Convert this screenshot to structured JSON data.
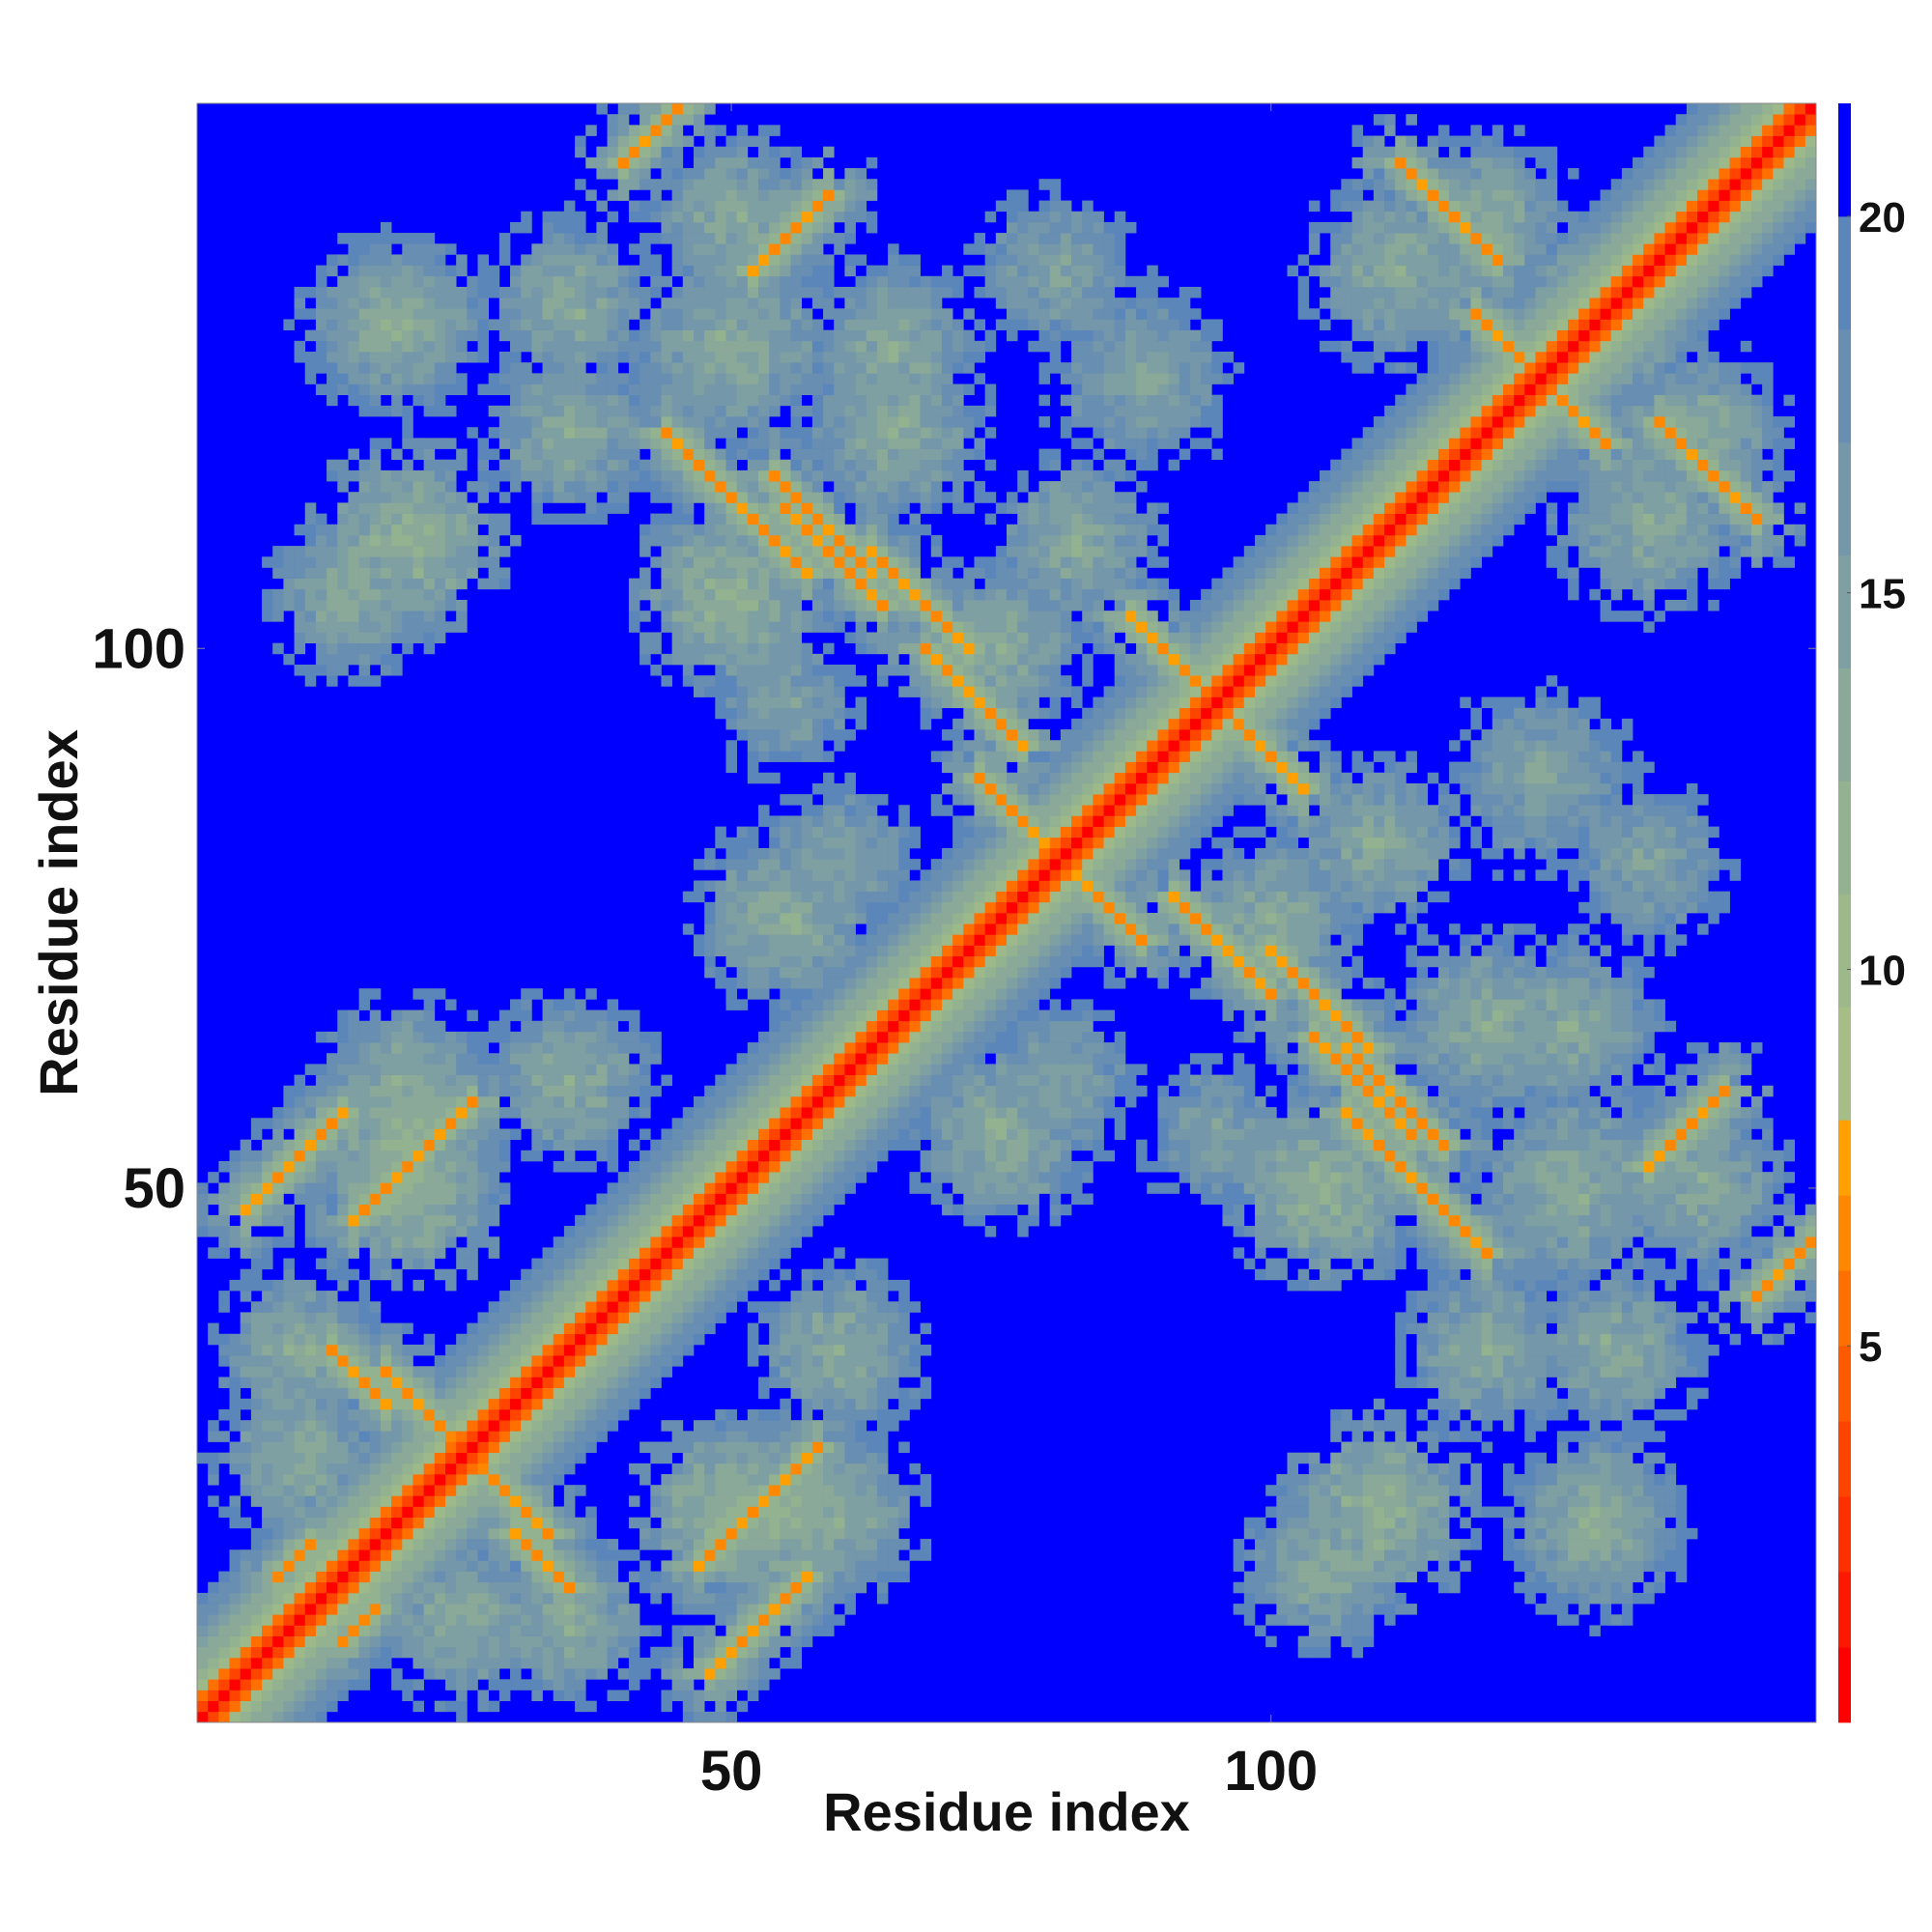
{
  "chart_data": {
    "type": "heatmap",
    "title": "",
    "xlabel": "Residue index",
    "ylabel": "Residue index",
    "n_residues": 150,
    "xlim": [
      1,
      150
    ],
    "ylim": [
      1,
      150
    ],
    "x_ticks": [
      50,
      100
    ],
    "y_ticks": [
      50,
      100
    ],
    "x_tick_labels": [
      "50",
      "100"
    ],
    "y_tick_labels": [
      "50",
      "100"
    ],
    "colorbar": {
      "range": [
        0,
        21.5
      ],
      "ticks": [
        5,
        10,
        15,
        20
      ],
      "tick_labels": [
        "5",
        "10",
        "15",
        "20"
      ],
      "levels": [
        {
          "upper": 1,
          "color": "#ff0000"
        },
        {
          "upper": 2,
          "color": "#ff1800"
        },
        {
          "upper": 3,
          "color": "#ff3000"
        },
        {
          "upper": 4,
          "color": "#ff4400"
        },
        {
          "upper": 5,
          "color": "#ff5a00"
        },
        {
          "upper": 6,
          "color": "#ff7000"
        },
        {
          "upper": 7,
          "color": "#ff8800"
        },
        {
          "upper": 8,
          "color": "#ffa000"
        },
        {
          "upper": 9.5,
          "color": "#a6bd85"
        },
        {
          "upper": 11,
          "color": "#9db98a"
        },
        {
          "upper": 12.5,
          "color": "#93b290"
        },
        {
          "upper": 14,
          "color": "#8aa998"
        },
        {
          "upper": 15.5,
          "color": "#7fa0a2"
        },
        {
          "upper": 17,
          "color": "#7497aa"
        },
        {
          "upper": 18.5,
          "color": "#688eb2"
        },
        {
          "upper": 20,
          "color": "#5b86ba"
        },
        {
          "upper": 21.5,
          "color": "#0000ff"
        }
      ]
    },
    "distance_cutoff": 20,
    "diagonal_value": 0.5,
    "contact_bands": [
      {
        "i_start": 5,
        "j_start": 48,
        "length": 10,
        "orientation": "parallel",
        "value": 6
      },
      {
        "i_start": 47,
        "j_start": 15,
        "length": 12,
        "orientation": "parallel",
        "value": 6
      },
      {
        "i_start": 14,
        "j_start": 8,
        "length": 4,
        "orientation": "parallel",
        "value": 6
      },
      {
        "i_start": 40,
        "j_start": 145,
        "length": 6,
        "orientation": "parallel",
        "value": 6
      },
      {
        "i_start": 44,
        "j_start": 120,
        "length": 14,
        "orientation": "antiparallel",
        "value": 6
      },
      {
        "i_start": 55,
        "j_start": 113,
        "length": 10,
        "orientation": "antiparallel",
        "value": 6
      },
      {
        "i_start": 68,
        "j_start": 100,
        "length": 10,
        "orientation": "antiparallel",
        "value": 6
      },
      {
        "i_start": 73,
        "j_start": 88,
        "length": 8,
        "orientation": "antiparallel",
        "value": 6
      },
      {
        "i_start": 112,
        "j_start": 145,
        "length": 10,
        "orientation": "antiparallel",
        "value": 6
      },
      {
        "i_start": 100,
        "j_start": 72,
        "length": 10,
        "orientation": "antiparallel",
        "value": 6
      },
      {
        "i_start": 107,
        "j_start": 63,
        "length": 10,
        "orientation": "antiparallel",
        "value": 6
      },
      {
        "i_start": 92,
        "j_start": 98,
        "length": 12,
        "orientation": "antiparallel",
        "value": 6
      },
      {
        "i_start": 120,
        "j_start": 130,
        "length": 12,
        "orientation": "antiparallel",
        "value": 6
      },
      {
        "i_start": 135,
        "j_start": 52,
        "length": 8,
        "orientation": "parallel",
        "value": 6
      },
      {
        "i_start": 27,
        "j_start": 24,
        "length": 7,
        "orientation": "antiparallel",
        "value": 6
      },
      {
        "i_start": 30,
        "j_start": 18,
        "length": 6,
        "orientation": "antiparallel",
        "value": 6
      }
    ],
    "clusters": [
      {
        "i": 18,
        "j": 130,
        "spread": 9,
        "value": 13
      },
      {
        "i": 35,
        "j": 132,
        "spread": 9,
        "value": 13
      },
      {
        "i": 50,
        "j": 128,
        "spread": 11,
        "value": 13
      },
      {
        "i": 65,
        "j": 128,
        "spread": 9,
        "value": 13
      },
      {
        "i": 88,
        "j": 125,
        "spread": 10,
        "value": 14
      },
      {
        "i": 112,
        "j": 135,
        "spread": 10,
        "value": 13
      },
      {
        "i": 130,
        "j": 132,
        "spread": 9,
        "value": 13
      },
      {
        "i": 140,
        "j": 120,
        "spread": 9,
        "value": 13
      },
      {
        "i": 15,
        "j": 105,
        "spread": 9,
        "value": 13
      },
      {
        "i": 50,
        "j": 105,
        "spread": 10,
        "value": 12
      },
      {
        "i": 75,
        "j": 100,
        "spread": 9,
        "value": 13
      },
      {
        "i": 110,
        "j": 82,
        "spread": 9,
        "value": 13
      },
      {
        "i": 135,
        "j": 80,
        "spread": 9,
        "value": 14
      },
      {
        "i": 120,
        "j": 65,
        "spread": 10,
        "value": 13
      },
      {
        "i": 140,
        "j": 50,
        "spread": 9,
        "value": 13
      },
      {
        "i": 20,
        "j": 60,
        "spread": 9,
        "value": 13
      },
      {
        "i": 35,
        "j": 60,
        "spread": 9,
        "value": 13
      },
      {
        "i": 55,
        "j": 75,
        "spread": 10,
        "value": 13
      },
      {
        "i": 80,
        "j": 60,
        "spread": 9,
        "value": 14
      },
      {
        "i": 95,
        "j": 55,
        "spread": 8,
        "value": 14
      },
      {
        "i": 55,
        "j": 20,
        "spread": 10,
        "value": 12
      },
      {
        "i": 20,
        "j": 50,
        "spread": 10,
        "value": 12
      },
      {
        "i": 110,
        "j": 20,
        "spread": 10,
        "value": 12
      },
      {
        "i": 130,
        "j": 20,
        "spread": 9,
        "value": 13
      },
      {
        "i": 120,
        "j": 35,
        "spread": 9,
        "value": 13
      },
      {
        "i": 10,
        "j": 25,
        "spread": 9,
        "value": 13
      },
      {
        "i": 35,
        "j": 10,
        "spread": 9,
        "value": 13
      }
    ]
  }
}
